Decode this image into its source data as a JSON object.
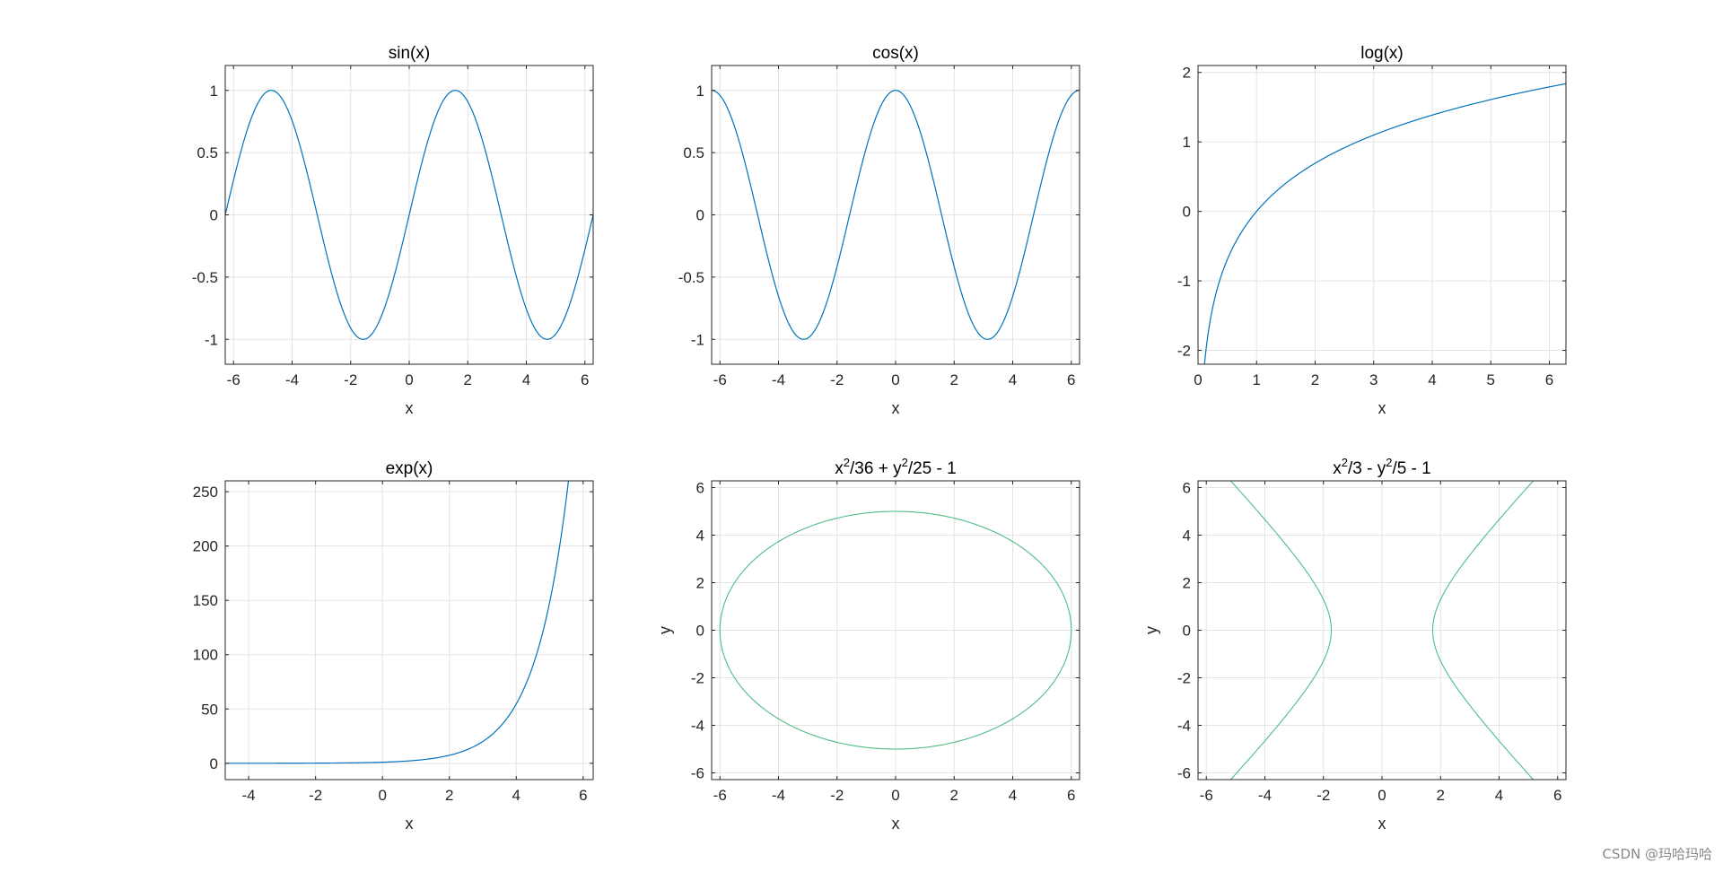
{
  "watermark": "CSDN @玛哈玛哈",
  "colors": {
    "curve": "#0072BD",
    "implicit": "#4DBD86",
    "grid": "#e3e3e3",
    "axis": "#262626"
  },
  "chart_data": [
    {
      "type": "line",
      "fn": "sin",
      "title": "sin(x)",
      "xlabel": "x",
      "ylabel": "",
      "xlim": [
        -6.2832,
        6.2832
      ],
      "ylim": [
        -1.2,
        1.2
      ],
      "xticks": [
        -6,
        -4,
        -2,
        0,
        2,
        4,
        6
      ],
      "yticks": [
        -1,
        -0.5,
        0,
        0.5,
        1
      ],
      "grid": true
    },
    {
      "type": "line",
      "fn": "cos",
      "title": "cos(x)",
      "xlabel": "x",
      "ylabel": "",
      "xlim": [
        -6.2832,
        6.2832
      ],
      "ylim": [
        -1.2,
        1.2
      ],
      "xticks": [
        -6,
        -4,
        -2,
        0,
        2,
        4,
        6
      ],
      "yticks": [
        -1,
        -0.5,
        0,
        0.5,
        1
      ],
      "grid": true
    },
    {
      "type": "line",
      "fn": "log",
      "title": "log(x)",
      "xlabel": "x",
      "ylabel": "",
      "xlim": [
        0,
        6.2832
      ],
      "ylim": [
        -2.2,
        2.1
      ],
      "xticks": [
        0,
        1,
        2,
        3,
        4,
        5,
        6
      ],
      "yticks": [
        -2,
        -1,
        0,
        1,
        2
      ],
      "grid": true
    },
    {
      "type": "line",
      "fn": "exp",
      "title": "exp(x)",
      "xlabel": "x",
      "ylabel": "",
      "xlim": [
        -4.7,
        6.3
      ],
      "ylim": [
        -15,
        260
      ],
      "xticks": [
        -4,
        -2,
        0,
        2,
        4,
        6
      ],
      "yticks": [
        0,
        50,
        100,
        150,
        200,
        250
      ],
      "grid": true
    },
    {
      "type": "implicit",
      "fn": "ellipse",
      "title": "x^2/36 + y^2/25 - 1",
      "title_parts": [
        "x",
        "2",
        "/36 + y",
        "2",
        "/25 - 1"
      ],
      "equation": {
        "a2": 36,
        "b2": 25,
        "sign": 1
      },
      "xlabel": "x",
      "ylabel": "y",
      "xlim": [
        -6.2832,
        6.2832
      ],
      "ylim": [
        -6.2832,
        6.2832
      ],
      "xticks": [
        -6,
        -4,
        -2,
        0,
        2,
        4,
        6
      ],
      "yticks": [
        -6,
        -4,
        -2,
        0,
        2,
        4,
        6
      ],
      "grid": true
    },
    {
      "type": "implicit",
      "fn": "hyperbola",
      "title": "x^2/3 - y^2/5 - 1",
      "title_parts": [
        "x",
        "2",
        "/3 - y",
        "2",
        "/5 - 1"
      ],
      "equation": {
        "a2": 3,
        "b2": 5,
        "sign": -1
      },
      "xlabel": "x",
      "ylabel": "y",
      "xlim": [
        -6.2832,
        6.2832
      ],
      "ylim": [
        -6.2832,
        6.2832
      ],
      "xticks": [
        -6,
        -4,
        -2,
        0,
        2,
        4,
        6
      ],
      "yticks": [
        -6,
        -4,
        -2,
        0,
        2,
        4,
        6
      ],
      "grid": true
    }
  ]
}
